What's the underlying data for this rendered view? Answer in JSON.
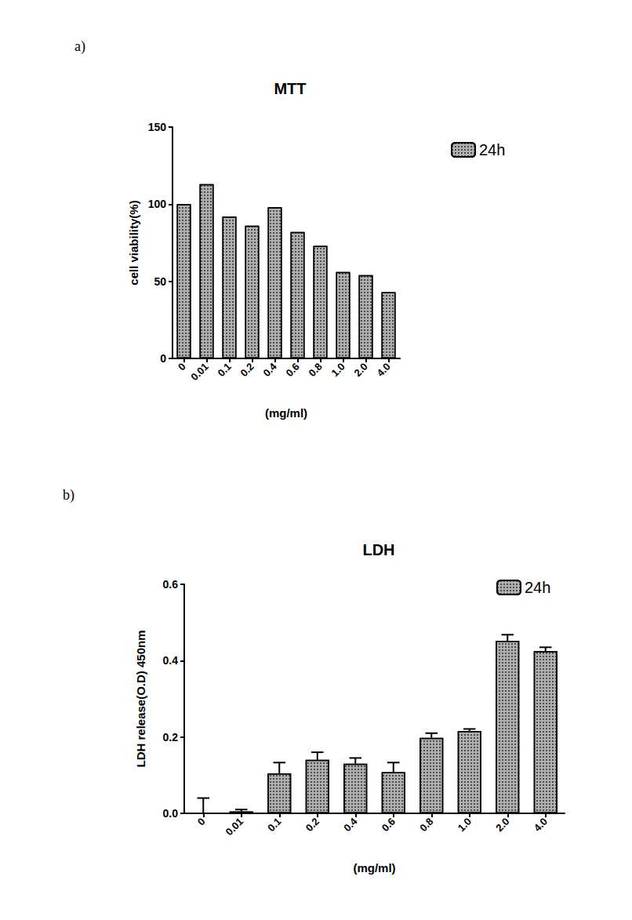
{
  "chart_data": [
    {
      "type": "bar",
      "title": "MTT",
      "annotations": [
        "a)"
      ],
      "x_label": "(mg/ml)",
      "y_label": "cell viability(%)",
      "categories": [
        "0",
        "0.01",
        "0.1",
        "0.2",
        "0.4",
        "0.6",
        "0.8",
        "1.0",
        "2.0",
        "4.0"
      ],
      "series": [
        {
          "name": "24h",
          "color": "#b0b0b0",
          "values": [
            100,
            113,
            92,
            86,
            98,
            82,
            73,
            56,
            54,
            43
          ]
        }
      ],
      "ylim": [
        0,
        150
      ],
      "yticks": [
        0,
        50,
        100,
        150
      ],
      "grid": false,
      "legend": "upper right"
    },
    {
      "type": "bar",
      "title": "LDH",
      "annotations": [
        "b)"
      ],
      "x_label": "(mg/ml)",
      "y_label": "LDH release(O.D) 450nm",
      "categories": [
        "0",
        "0.01",
        "0.1",
        "0.2",
        "0.4",
        "0.6",
        "0.8",
        "1.0",
        "2.0",
        "4.0"
      ],
      "series": [
        {
          "name": "24h",
          "color": "#b0b0b0",
          "values": [
            0,
            0.005,
            0.105,
            0.14,
            0.13,
            0.108,
            0.198,
            0.216,
            0.452,
            0.425
          ],
          "errors": [
            0.04,
            0.005,
            0.028,
            0.02,
            0.015,
            0.025,
            0.012,
            0.005,
            0.016,
            0.01
          ]
        }
      ],
      "ylim": [
        0,
        0.6
      ],
      "yticks": [
        {
          "value": 0,
          "label": "0.0"
        },
        0.2,
        0.4,
        0.6
      ],
      "grid": false,
      "legend": "upper right"
    }
  ]
}
